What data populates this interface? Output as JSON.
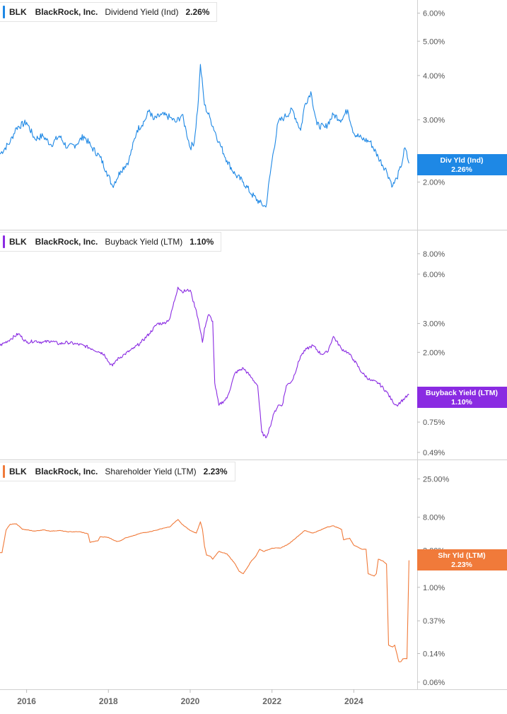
{
  "legends": [
    {
      "ticker": "BLK",
      "company": "BlackRock, Inc.",
      "metric": "Dividend Yield (Ind)",
      "value": "2.26%"
    },
    {
      "ticker": "BLK",
      "company": "BlackRock, Inc.",
      "metric": "Buyback Yield (LTM)",
      "value": "1.10%"
    },
    {
      "ticker": "BLK",
      "company": "BlackRock, Inc.",
      "metric": "Shareholder Yield (LTM)",
      "value": "2.23%"
    }
  ],
  "x_ticks": [
    "2016",
    "2018",
    "2020",
    "2022",
    "2024"
  ],
  "chart_data": [
    {
      "type": "line",
      "title": "",
      "scale": "log",
      "color": "#1e88e5",
      "y_ticks": [
        "6.00%",
        "5.00%",
        "4.00%",
        "3.00%",
        "2.00%"
      ],
      "y_tick_values": [
        6.0,
        5.0,
        4.0,
        3.0,
        2.0
      ],
      "ylim": [
        1.55,
        6.3
      ],
      "badge": {
        "label": "Div Yld (Ind)",
        "value": "2.26%"
      },
      "series": [
        {
          "name": "Dividend Yield (Ind)",
          "x": [
            2015.35,
            2015.6,
            2015.75,
            2016.0,
            2016.2,
            2016.4,
            2016.6,
            2016.8,
            2017.0,
            2017.2,
            2017.4,
            2017.6,
            2017.8,
            2017.95,
            2018.1,
            2018.3,
            2018.5,
            2018.7,
            2018.9,
            2019.0,
            2019.1,
            2019.3,
            2019.5,
            2019.65,
            2019.8,
            2019.9,
            2020.0,
            2020.1,
            2020.2,
            2020.25,
            2020.35,
            2020.5,
            2020.7,
            2020.9,
            2021.1,
            2021.3,
            2021.5,
            2021.7,
            2021.85,
            2022.0,
            2022.15,
            2022.3,
            2022.5,
            2022.7,
            2022.8,
            2022.95,
            2023.1,
            2023.3,
            2023.5,
            2023.7,
            2023.85,
            2024.0,
            2024.2,
            2024.4,
            2024.6,
            2024.8,
            2024.95,
            2025.05,
            2025.15,
            2025.25,
            2025.35
          ],
          "values": [
            2.4,
            2.6,
            2.85,
            2.95,
            2.65,
            2.7,
            2.55,
            2.7,
            2.5,
            2.55,
            2.7,
            2.5,
            2.35,
            2.15,
            1.95,
            2.15,
            2.3,
            2.8,
            3.0,
            3.2,
            3.0,
            3.1,
            3.05,
            2.95,
            3.1,
            2.8,
            2.5,
            2.6,
            3.4,
            4.3,
            3.3,
            3.0,
            2.6,
            2.3,
            2.1,
            2.0,
            1.85,
            1.75,
            1.7,
            2.3,
            2.95,
            3.05,
            3.2,
            2.8,
            3.3,
            3.6,
            2.9,
            2.85,
            3.1,
            3.0,
            3.2,
            2.75,
            2.65,
            2.6,
            2.35,
            2.15,
            1.95,
            2.05,
            2.2,
            2.5,
            2.26
          ]
        }
      ]
    },
    {
      "type": "line",
      "title": "",
      "scale": "log",
      "color": "#8a2be2",
      "y_ticks": [
        "8.00%",
        "6.00%",
        "3.00%",
        "2.00%",
        "0.75%",
        "0.49%"
      ],
      "y_tick_values": [
        8.0,
        6.0,
        3.0,
        2.0,
        0.75,
        0.49
      ],
      "ylim": [
        0.48,
        9.0
      ],
      "badge": {
        "label": "Buyback Yield (LTM)",
        "value": "1.10%"
      },
      "series": [
        {
          "name": "Buyback Yield (LTM)",
          "x": [
            2015.35,
            2015.6,
            2015.8,
            2016.0,
            2016.2,
            2016.4,
            2016.6,
            2016.8,
            2017.0,
            2017.2,
            2017.4,
            2017.6,
            2017.8,
            2017.9,
            2018.0,
            2018.1,
            2018.2,
            2018.4,
            2018.6,
            2018.8,
            2019.0,
            2019.2,
            2019.35,
            2019.5,
            2019.7,
            2019.8,
            2020.0,
            2020.05,
            2020.15,
            2020.25,
            2020.3,
            2020.35,
            2020.45,
            2020.55,
            2020.6,
            2020.7,
            2020.9,
            2021.1,
            2021.3,
            2021.5,
            2021.6,
            2021.65,
            2021.75,
            2021.85,
            2021.95,
            2022.05,
            2022.15,
            2022.25,
            2022.35,
            2022.5,
            2022.7,
            2022.85,
            2023.0,
            2023.2,
            2023.35,
            2023.5,
            2023.7,
            2023.85,
            2024.0,
            2024.2,
            2024.4,
            2024.6,
            2024.8,
            2024.95,
            2025.05,
            2025.15,
            2025.25,
            2025.35
          ],
          "values": [
            2.2,
            2.4,
            2.6,
            2.3,
            2.35,
            2.3,
            2.35,
            2.25,
            2.3,
            2.25,
            2.2,
            2.1,
            2.0,
            1.95,
            1.75,
            1.65,
            1.8,
            1.95,
            2.1,
            2.3,
            2.6,
            3.0,
            3.0,
            3.2,
            5.0,
            4.7,
            4.8,
            4.3,
            3.6,
            2.7,
            2.3,
            2.8,
            3.4,
            3.1,
            1.3,
            0.95,
            1.05,
            1.5,
            1.6,
            1.4,
            1.3,
            1.25,
            0.65,
            0.6,
            0.7,
            0.85,
            0.95,
            0.95,
            1.25,
            1.35,
            1.9,
            2.1,
            2.2,
            1.95,
            2.0,
            2.5,
            2.1,
            2.0,
            1.8,
            1.5,
            1.35,
            1.3,
            1.15,
            1.0,
            0.95,
            1.0,
            1.05,
            1.1
          ]
        }
      ]
    },
    {
      "type": "line",
      "title": "",
      "scale": "log",
      "color": "#f07a3a",
      "y_ticks": [
        "25.00%",
        "8.00%",
        "3.00%",
        "1.00%",
        "0.37%",
        "0.14%",
        "0.06%"
      ],
      "y_tick_values": [
        25.0,
        8.0,
        3.0,
        1.0,
        0.37,
        0.14,
        0.06
      ],
      "ylim": [
        0.055,
        28.0
      ],
      "badge": {
        "label": "Shr Yld (LTM)",
        "value": "2.23%"
      },
      "series": [
        {
          "name": "Shareholder Yield (LTM)",
          "x": [
            2015.35,
            2015.4,
            2015.5,
            2015.6,
            2015.75,
            2015.9,
            2016.0,
            2016.2,
            2016.4,
            2016.6,
            2016.8,
            2017.0,
            2017.3,
            2017.5,
            2017.55,
            2017.75,
            2017.8,
            2018.0,
            2018.2,
            2018.3,
            2018.4,
            2018.6,
            2018.8,
            2019.0,
            2019.2,
            2019.35,
            2019.5,
            2019.7,
            2019.8,
            2020.0,
            2020.15,
            2020.25,
            2020.3,
            2020.35,
            2020.4,
            2020.5,
            2020.55,
            2020.7,
            2020.9,
            2021.1,
            2021.2,
            2021.3,
            2021.5,
            2021.6,
            2021.7,
            2021.8,
            2022.0,
            2022.2,
            2022.4,
            2022.6,
            2022.8,
            2023.0,
            2023.2,
            2023.35,
            2023.5,
            2023.7,
            2023.75,
            2023.9,
            2024.0,
            2024.2,
            2024.3,
            2024.35,
            2024.5,
            2024.55,
            2024.6,
            2024.7,
            2024.8,
            2024.85,
            2024.95,
            2025.0,
            2025.1,
            2025.15,
            2025.2,
            2025.3,
            2025.35
          ],
          "values": [
            2.8,
            2.8,
            5.5,
            6.5,
            6.6,
            5.6,
            5.5,
            5.3,
            5.5,
            5.3,
            5.4,
            5.2,
            5.2,
            4.9,
            3.8,
            4.0,
            4.5,
            4.4,
            3.9,
            4.0,
            4.3,
            4.6,
            5.0,
            5.2,
            5.5,
            5.8,
            6.0,
            7.5,
            6.5,
            5.4,
            5.0,
            7.0,
            5.6,
            3.4,
            2.6,
            2.5,
            2.3,
            2.9,
            2.7,
            2.0,
            1.6,
            1.5,
            2.2,
            2.5,
            3.1,
            2.9,
            3.2,
            3.2,
            3.6,
            4.4,
            5.4,
            5.0,
            5.5,
            6.0,
            6.2,
            5.6,
            4.1,
            4.3,
            3.5,
            3.1,
            3.1,
            1.5,
            1.4,
            1.5,
            2.3,
            2.2,
            2.0,
            0.18,
            0.17,
            0.18,
            0.11,
            0.11,
            0.12,
            0.12,
            2.23
          ]
        }
      ]
    }
  ]
}
